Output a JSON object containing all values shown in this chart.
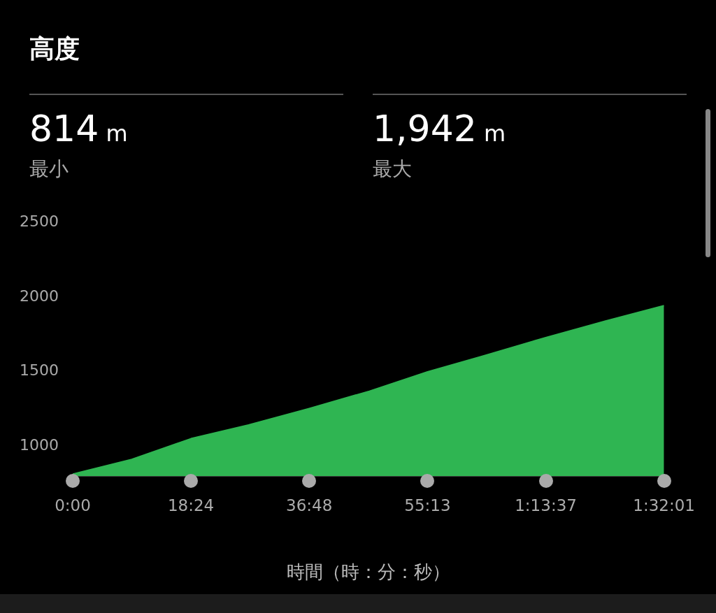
{
  "chart_data": {
    "type": "area",
    "title": "高度",
    "xlabel": "時間（時：分：秒）",
    "annotations": [
      "814 m",
      "最小",
      "1,942 m",
      "最大"
    ],
    "x": [
      0,
      9.19,
      18.4,
      27.36,
      36.8,
      46.17,
      55.2167,
      64.55,
      73.6167,
      82.93,
      92.0167
    ],
    "series": [
      {
        "color": "#2fb552",
        "values": [
          814,
          912,
          1051,
          1143,
          1253,
          1369,
          1498,
          1613,
          1728,
          1839,
          1942
        ]
      }
    ],
    "xlim": [
      0,
      92.0167
    ],
    "xticks": [
      {
        "value": 0,
        "label": "0:00"
      },
      {
        "value": 18.4,
        "label": "18:24"
      },
      {
        "value": 36.8,
        "label": "36:48"
      },
      {
        "value": 55.2167,
        "label": "55:13"
      },
      {
        "value": 73.6167,
        "label": "1:13:37"
      },
      {
        "value": 92.0167,
        "label": "1:32:01"
      }
    ],
    "ylim": [
      800,
      2500
    ],
    "yticks": [
      1000,
      1500,
      2000,
      2500
    ],
    "legend": false
  }
}
